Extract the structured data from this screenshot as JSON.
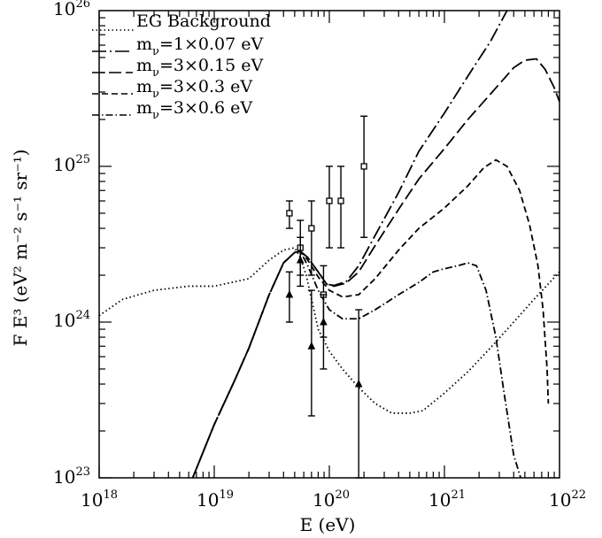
{
  "chart_data": {
    "type": "line",
    "xlabel": "E (eV)",
    "ylabel": "F E³ (eV² m⁻² s⁻¹ sr⁻¹)",
    "xscale": "log",
    "yscale": "log",
    "xlim": [
      1e+18,
      1e+22
    ],
    "ylim": [
      1e+23,
      1e+26
    ],
    "x_ticks": [
      {
        "base": "10",
        "exp": "18",
        "value": 1e+18
      },
      {
        "base": "10",
        "exp": "19",
        "value": 1e+19
      },
      {
        "base": "10",
        "exp": "20",
        "value": 1e+20
      },
      {
        "base": "10",
        "exp": "21",
        "value": 1e+21
      },
      {
        "base": "10",
        "exp": "22",
        "value": 1e+22
      }
    ],
    "y_ticks": [
      {
        "base": "10",
        "exp": "23",
        "value": 1e+23
      },
      {
        "base": "10",
        "exp": "24",
        "value": 1e+24
      },
      {
        "base": "10",
        "exp": "25",
        "value": 1e+25
      },
      {
        "base": "10",
        "exp": "26",
        "value": 1e+26
      }
    ],
    "legend_placement": "top-left",
    "series": [
      {
        "name": "EG Background",
        "dash": "dotted",
        "points": [
          [
            1e+18,
            1.1e+24
          ],
          [
            1.6e+18,
            1.4e+24
          ],
          [
            3e+18,
            1.6e+24
          ],
          [
            6e+18,
            1.7e+24
          ],
          [
            1e+19,
            1.7e+24
          ],
          [
            2e+19,
            1.9e+24
          ],
          [
            3e+19,
            2.5e+24
          ],
          [
            4e+19,
            2.9e+24
          ],
          [
            5e+19,
            3e+24
          ],
          [
            5.6e+19,
            2.6e+24
          ],
          [
            6.3e+19,
            2e+24
          ],
          [
            8e+19,
            9e+23
          ],
          [
            1e+20,
            6.5e+23
          ],
          [
            1.3e+20,
            5e+23
          ],
          [
            1.8e+20,
            3.8e+23
          ],
          [
            2.5e+20,
            3e+23
          ],
          [
            3.5e+20,
            2.6e+23
          ],
          [
            5e+20,
            2.6e+23
          ],
          [
            6.5e+20,
            2.7e+23
          ],
          [
            1e+21,
            3.5e+23
          ],
          [
            1.6e+21,
            4.8e+23
          ],
          [
            2.5e+21,
            6.8e+23
          ],
          [
            4e+21,
            1e+24
          ],
          [
            6e+21,
            1.4e+24
          ],
          [
            1e+22,
            2.1e+24
          ]
        ]
      },
      {
        "name": "1×0.07 eV",
        "dash": "dash-dot-long",
        "points": [
          [
            6.5e+18,
            1e+23
          ],
          [
            1e+19,
            2.2e+23
          ],
          [
            1.5e+19,
            4.2e+23
          ],
          [
            2e+19,
            6.8e+23
          ],
          [
            3e+19,
            1.5e+24
          ],
          [
            4e+19,
            2.4e+24
          ],
          [
            5e+19,
            2.8e+24
          ],
          [
            5.6e+19,
            2.85e+24
          ],
          [
            6.5e+19,
            2.6e+24
          ],
          [
            8e+19,
            2.1e+24
          ],
          [
            9.5e+19,
            1.75e+24
          ],
          [
            1.1e+20,
            1.72e+24
          ],
          [
            1.4e+20,
            1.82e+24
          ],
          [
            1.8e+20,
            2.3e+24
          ],
          [
            2.5e+20,
            3.6e+24
          ],
          [
            4e+20,
            6.8e+24
          ],
          [
            6e+20,
            1.25e+25
          ],
          [
            1e+21,
            2.2e+25
          ],
          [
            1.6e+21,
            3.8e+25
          ],
          [
            2.5e+21,
            6.3e+25
          ],
          [
            3.5e+21,
            1e+26
          ]
        ]
      },
      {
        "name": "3×0.15 eV",
        "dash": "long-dash",
        "points": [
          [
            6.5e+18,
            1e+23
          ],
          [
            1e+19,
            2.2e+23
          ],
          [
            1.5e+19,
            4.2e+23
          ],
          [
            2e+19,
            6.8e+23
          ],
          [
            3e+19,
            1.5e+24
          ],
          [
            4e+19,
            2.4e+24
          ],
          [
            5e+19,
            2.8e+24
          ],
          [
            5.6e+19,
            2.85e+24
          ],
          [
            6.5e+19,
            2.6e+24
          ],
          [
            8e+19,
            2.1e+24
          ],
          [
            9.5e+19,
            1.75e+24
          ],
          [
            1.1e+20,
            1.7e+24
          ],
          [
            1.4e+20,
            1.78e+24
          ],
          [
            1.8e+20,
            2.1e+24
          ],
          [
            2.5e+20,
            3.1e+24
          ],
          [
            4e+20,
            5.3e+24
          ],
          [
            6e+20,
            8.3e+24
          ],
          [
            1e+21,
            1.3e+25
          ],
          [
            1.6e+21,
            2e+25
          ],
          [
            2.5e+21,
            2.9e+25
          ],
          [
            4e+21,
            4.3e+25
          ],
          [
            5e+21,
            4.8e+25
          ],
          [
            6.3e+21,
            4.9e+25
          ],
          [
            7.5e+21,
            4.2e+25
          ],
          [
            9e+21,
            3.2e+25
          ],
          [
            1e+22,
            2.6e+25
          ]
        ]
      },
      {
        "name": "3×0.3 eV",
        "dash": "dashed",
        "points": [
          [
            6.5e+18,
            1e+23
          ],
          [
            1e+19,
            2.2e+23
          ],
          [
            1.5e+19,
            4.2e+23
          ],
          [
            2e+19,
            6.8e+23
          ],
          [
            3e+19,
            1.5e+24
          ],
          [
            4e+19,
            2.4e+24
          ],
          [
            5e+19,
            2.8e+24
          ],
          [
            5.6e+19,
            2.85e+24
          ],
          [
            6.5e+19,
            2.5e+24
          ],
          [
            8e+19,
            1.95e+24
          ],
          [
            1e+20,
            1.6e+24
          ],
          [
            1.3e+20,
            1.45e+24
          ],
          [
            1.8e+20,
            1.5e+24
          ],
          [
            2.5e+20,
            1.9e+24
          ],
          [
            4e+20,
            2.9e+24
          ],
          [
            6e+20,
            4e+24
          ],
          [
            1e+21,
            5.4e+24
          ],
          [
            1.6e+21,
            7.5e+24
          ],
          [
            2.2e+21,
            9.8e+24
          ],
          [
            2.8e+21,
            1.1e+25
          ],
          [
            3.5e+21,
            1e+25
          ],
          [
            4.5e+21,
            7e+24
          ],
          [
            5.5e+21,
            4.2e+24
          ],
          [
            6.5e+21,
            2.3e+24
          ],
          [
            7.2e+21,
            1.2e+24
          ],
          [
            7.8e+21,
            5e+23
          ],
          [
            8e+21,
            3e+23
          ]
        ]
      },
      {
        "name": "3×0.6 eV",
        "dash": "dash-dot",
        "points": [
          [
            6.5e+18,
            1e+23
          ],
          [
            1e+19,
            2.2e+23
          ],
          [
            1.5e+19,
            4.2e+23
          ],
          [
            2e+19,
            6.8e+23
          ],
          [
            3e+19,
            1.5e+24
          ],
          [
            4e+19,
            2.4e+24
          ],
          [
            5e+19,
            2.8e+24
          ],
          [
            5.6e+19,
            2.85e+24
          ],
          [
            6.5e+19,
            2.3e+24
          ],
          [
            8e+19,
            1.6e+24
          ],
          [
            1e+20,
            1.2e+24
          ],
          [
            1.3e+20,
            1.05e+24
          ],
          [
            1.8e+20,
            1.05e+24
          ],
          [
            2.5e+20,
            1.2e+24
          ],
          [
            4e+20,
            1.5e+24
          ],
          [
            6e+20,
            1.8e+24
          ],
          [
            8e+20,
            2.1e+24
          ],
          [
            1e+21,
            2.2e+24
          ],
          [
            1.3e+21,
            2.3e+24
          ],
          [
            1.6e+21,
            2.4e+24
          ],
          [
            1.9e+21,
            2.3e+24
          ],
          [
            2.3e+21,
            1.6e+24
          ],
          [
            2.8e+21,
            8e+23
          ],
          [
            3.3e+21,
            3.5e+23
          ],
          [
            4e+21,
            1.4e+23
          ],
          [
            4.6e+21,
            1e+23
          ]
        ]
      }
    ],
    "data_points": {
      "squares": [
        {
          "x": 4.5e+19,
          "y": 5e+24,
          "lo": 4e+24,
          "hi": 6e+24
        },
        {
          "x": 5.6e+19,
          "y": 3e+24,
          "lo": 2e+24,
          "hi": 4.5e+24
        },
        {
          "x": 7e+19,
          "y": 4e+24,
          "lo": 2e+24,
          "hi": 6e+24
        },
        {
          "x": 8.9e+19,
          "y": 1.5e+24,
          "lo": 8e+23,
          "hi": 2.3e+24
        },
        {
          "x": 1e+20,
          "y": 6e+24,
          "lo": 3e+24,
          "hi": 1e+25
        },
        {
          "x": 1.26e+20,
          "y": 6e+24,
          "lo": 3e+24,
          "hi": 1e+25
        },
        {
          "x": 2e+20,
          "y": 1e+25,
          "lo": 3.5e+24,
          "hi": 2.1e+25
        }
      ],
      "triangles": [
        {
          "x": 4.5e+19,
          "y": 1.5e+24,
          "lo": 1e+24,
          "hi": 2.1e+24
        },
        {
          "x": 5.6e+19,
          "y": 2.5e+24,
          "lo": 1.7e+24,
          "hi": 3.5e+24
        },
        {
          "x": 7e+19,
          "y": 7e+23,
          "lo": 2.5e+23,
          "hi": 1.6e+24
        },
        {
          "x": 8.9e+19,
          "y": 1e+24,
          "lo": 5e+23,
          "hi": 1.5e+24
        },
        {
          "x": 1.8e+20,
          "y": 4e+23,
          "lo": 1e+23,
          "hi": 1.2e+24
        }
      ]
    }
  }
}
